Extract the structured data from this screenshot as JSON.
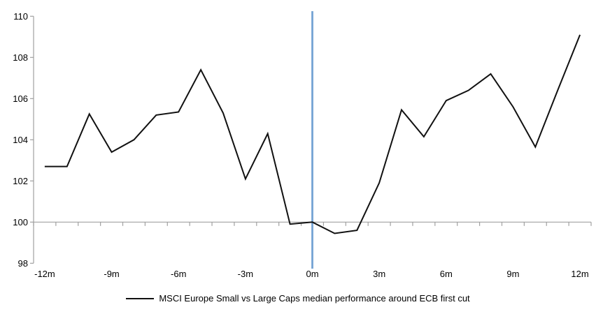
{
  "chart": {
    "background": "#ffffff",
    "colors": {
      "series_line": "#111111",
      "event_line": "#74a3d4",
      "axis_line": "#a0a0a0",
      "tick": "#a0a0a0",
      "label_text": "#000000"
    },
    "legend": {
      "label": "MSCI Europe Small vs Large Caps median performance around ECB first cut",
      "swatch_color": "#111111",
      "position": "bottom-center"
    }
  },
  "chart_data": {
    "type": "line",
    "title": "",
    "xlabel": "",
    "ylabel": "",
    "x": [
      -12,
      -11,
      -10,
      -9,
      -8,
      -7,
      -6,
      -5,
      -4,
      -3,
      -2,
      -1,
      0,
      1,
      2,
      3,
      4,
      5,
      6,
      7,
      8,
      9,
      10,
      11,
      12
    ],
    "series": [
      {
        "name": "MSCI Europe Small vs Large Caps median performance around ECB first cut",
        "values": [
          102.7,
          102.7,
          105.25,
          103.4,
          104.0,
          105.2,
          105.35,
          107.4,
          105.3,
          102.1,
          104.3,
          99.9,
          100.0,
          99.45,
          99.6,
          101.9,
          105.45,
          104.15,
          105.9,
          106.4,
          107.2,
          105.6,
          103.65,
          106.4,
          109.1
        ]
      }
    ],
    "x_tick_labels": [
      "-12m",
      "-9m",
      "-6m",
      "-3m",
      "0m",
      "3m",
      "6m",
      "9m",
      "12m"
    ],
    "x_tick_months": [
      -12,
      -9,
      -6,
      -3,
      0,
      3,
      6,
      9,
      12
    ],
    "y_ticks": [
      98,
      100,
      102,
      104,
      106,
      108,
      110
    ],
    "ylim": [
      98,
      110
    ],
    "baseline_value": 100,
    "event_line_x": 0,
    "grid": "none",
    "legend_position": "bottom"
  }
}
